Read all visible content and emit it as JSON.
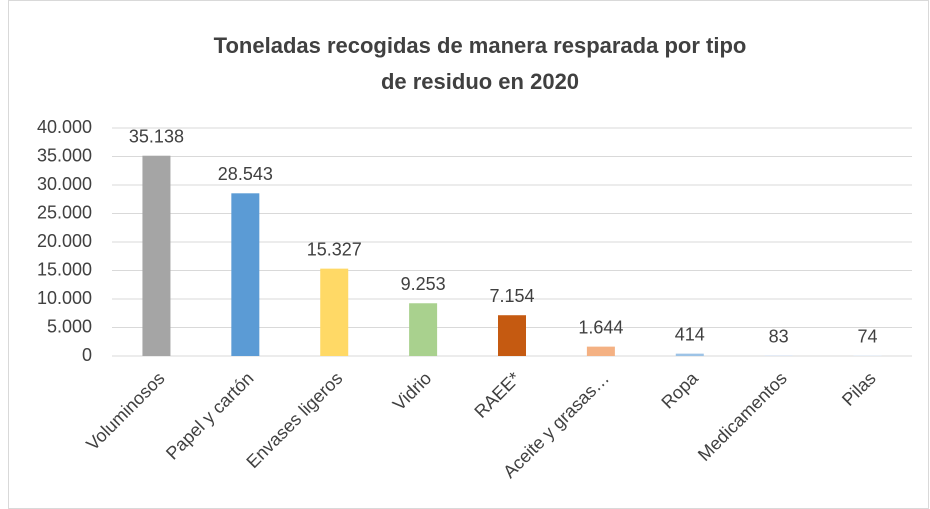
{
  "chart_data": {
    "type": "bar",
    "title": "Toneladas recogidas de manera resparada por tipo de residuo en 2020",
    "categories": [
      "Voluminosos",
      "Papel y cartón",
      "Envases ligeros",
      "Vidrio",
      "RAEE*",
      "Aceite y grasas…",
      "Ropa",
      "Medicamentos",
      "Pilas"
    ],
    "values": [
      35138,
      28543,
      15327,
      9253,
      7154,
      1644,
      414,
      83,
      74
    ],
    "value_labels": [
      "35.138",
      "28.543",
      "15.327",
      "9.253",
      "7.154",
      "1.644",
      "414",
      "83",
      "74"
    ],
    "colors": [
      "#a5a5a5",
      "#5b9bd5",
      "#ffd966",
      "#a9d18e",
      "#c55a11",
      "#f4b183",
      "#9dc3e6",
      "#c9d7ee",
      "#d6e4f3"
    ],
    "ylim": [
      0,
      40000
    ],
    "yticks": [
      0,
      {
        "value": 5000,
        "label": "5.000"
      },
      {
        "value": 10000,
        "label": "10.000"
      },
      {
        "value": 15000,
        "label": "15.000"
      },
      {
        "value": 20000,
        "label": "20.000"
      },
      {
        "value": 25000,
        "label": "25.000"
      },
      {
        "value": 30000,
        "label": "30.000"
      },
      {
        "value": 35000,
        "label": "35.000"
      },
      {
        "value": 40000,
        "label": "40.000"
      }
    ],
    "grid": true
  }
}
